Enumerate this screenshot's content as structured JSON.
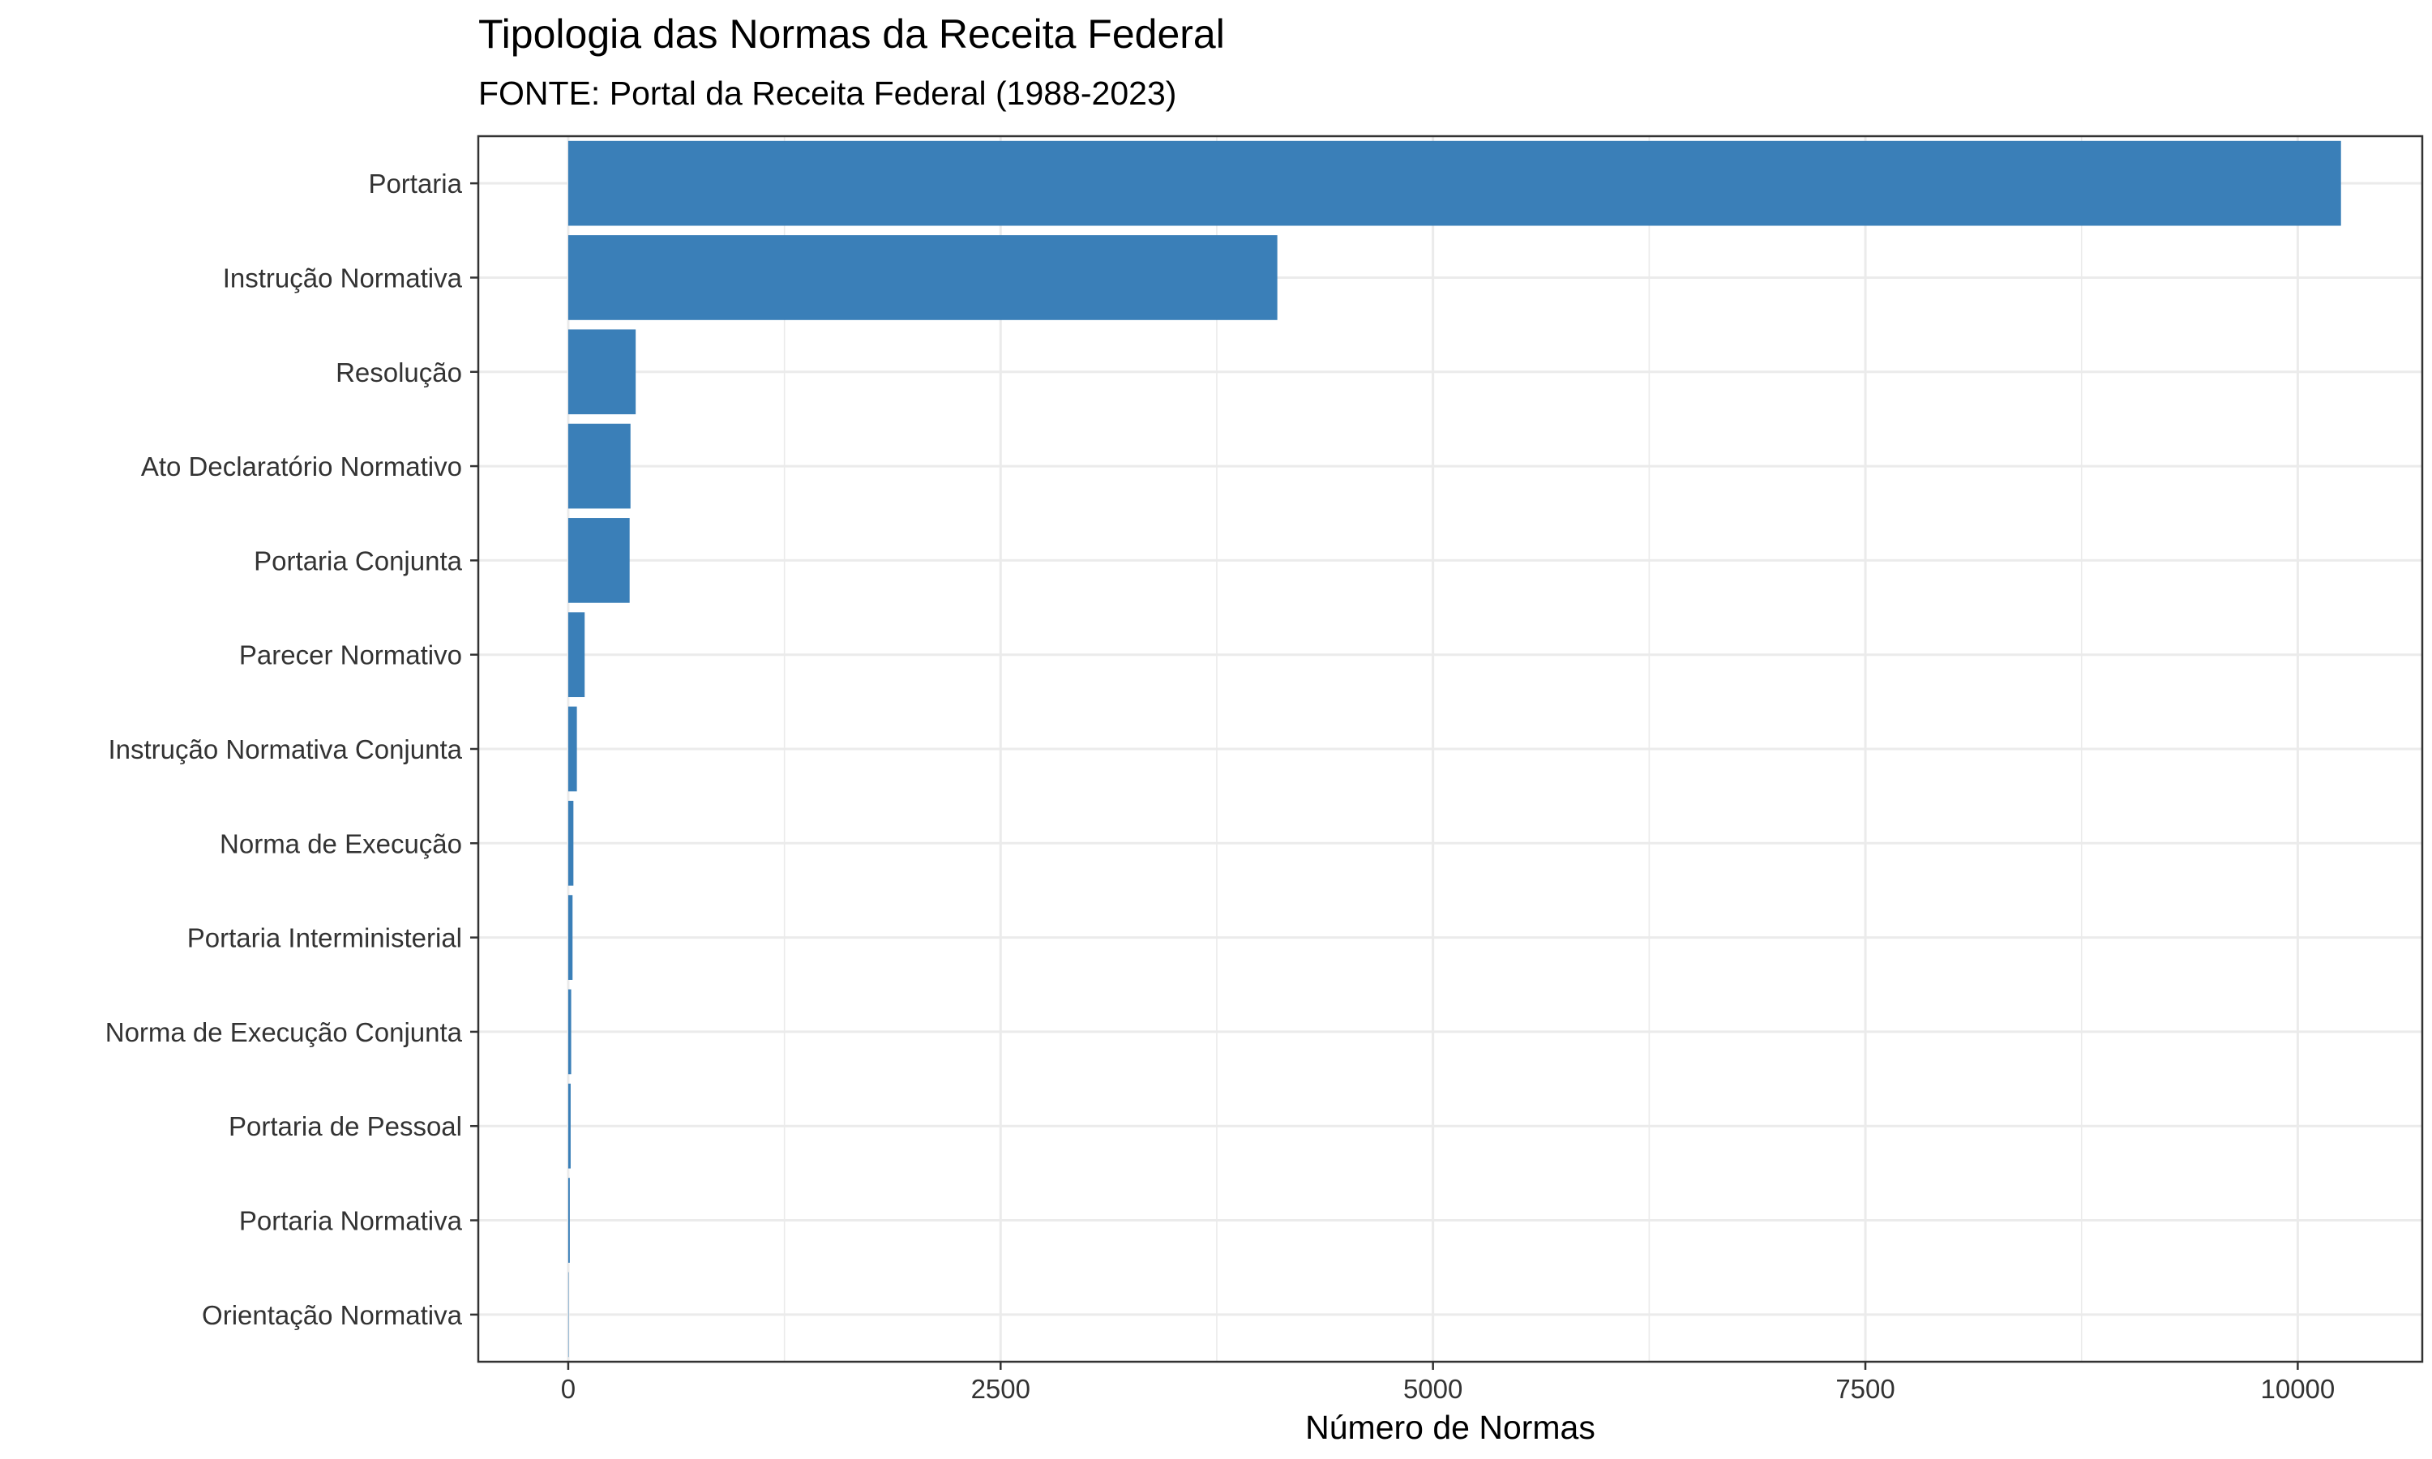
{
  "chart_data": {
    "type": "bar",
    "orientation": "horizontal",
    "title": "Tipologia das Normas da Receita Federal",
    "subtitle": "FONTE: Portal da Receita Federal (1988-2023)",
    "xlabel": "Número de Normas",
    "ylabel": "",
    "categories": [
      "Portaria",
      "Instrução Normativa",
      "Resolução",
      "Ato Declaratório Normativo",
      "Portaria Conjunta",
      "Parecer Normativo",
      "Instrução Normativa Conjunta",
      "Norma de Execução",
      "Portaria Interministerial",
      "Norma de Execução Conjunta",
      "Portaria de Pessoal",
      "Portaria Normativa",
      "Orientação Normativa"
    ],
    "values": [
      10250,
      4100,
      390,
      360,
      355,
      95,
      50,
      30,
      25,
      17,
      14,
      9,
      2
    ],
    "xlim": [
      -520,
      10720
    ],
    "xticks": [
      0,
      2500,
      5000,
      7500,
      10000
    ],
    "xtick_labels": [
      "0",
      "2500",
      "5000",
      "7500",
      "10000"
    ],
    "grid": true,
    "legend": "none",
    "bar_color": "#3A7FB8",
    "grid_color": "#EBEBEB",
    "panel_border_color": "#333333"
  }
}
